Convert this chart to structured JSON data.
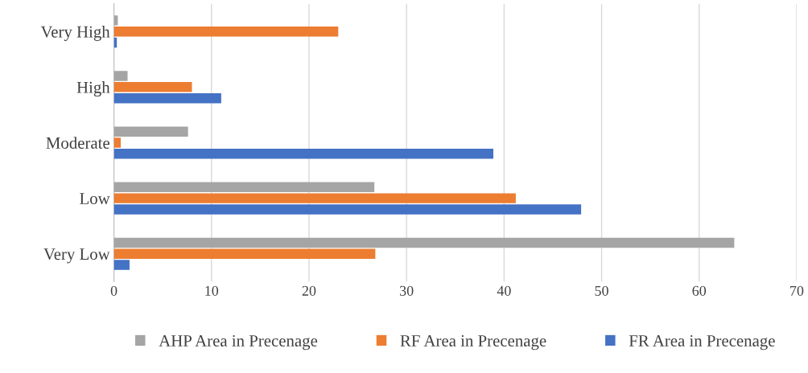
{
  "chart_data": {
    "type": "bar",
    "orientation": "horizontal",
    "categories": [
      "Very High",
      "High",
      "Moderate",
      "Low",
      "Very Low"
    ],
    "series": [
      {
        "name": "AHP Area in Precenage",
        "color": "#a5a5a5",
        "values": [
          0.4,
          1.4,
          7.6,
          26.7,
          63.6
        ]
      },
      {
        "name": "RF Area in Precenage",
        "color": "#ed7d31",
        "values": [
          23.0,
          8.0,
          0.7,
          41.2,
          26.8
        ]
      },
      {
        "name": "FR Area in Precenage",
        "color": "#4472c4",
        "values": [
          0.3,
          11.0,
          38.9,
          47.9,
          1.6
        ]
      }
    ],
    "xlim": [
      0,
      70
    ],
    "xticks": [
      0,
      10,
      20,
      30,
      40,
      50,
      60,
      70
    ],
    "grid": "x",
    "legend": "bottom"
  }
}
